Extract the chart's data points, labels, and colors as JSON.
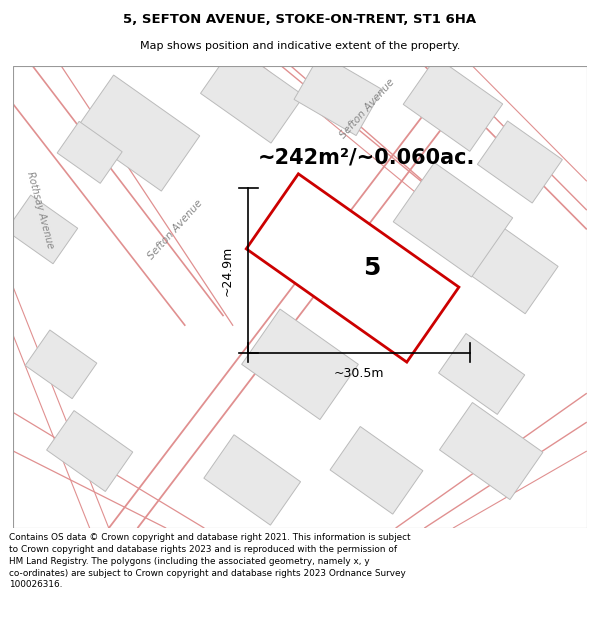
{
  "title_line1": "5, SEFTON AVENUE, STOKE-ON-TRENT, ST1 6HA",
  "title_line2": "Map shows position and indicative extent of the property.",
  "area_text": "~242m²/~0.060ac.",
  "plot_number": "5",
  "dim_width": "~30.5m",
  "dim_height": "~24.9m",
  "footer_text": "Contains OS data © Crown copyright and database right 2021. This information is subject to Crown copyright and database rights 2023 and is reproduced with the permission of HM Land Registry. The polygons (including the associated geometry, namely x, y co-ordinates) are subject to Crown copyright and database rights 2023 Ordnance Survey 100026316.",
  "map_bg": "#f5f5f5",
  "plot_color": "#cc0000",
  "street_color": "#e09090",
  "building_fill": "#e8e8e8",
  "building_edge": "#bbbbbb"
}
